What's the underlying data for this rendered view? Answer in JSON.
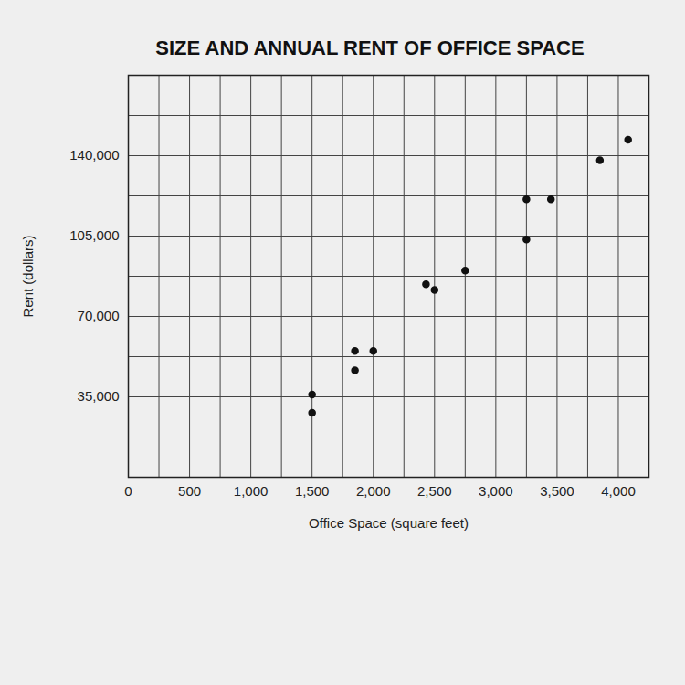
{
  "chart_data": {
    "type": "scatter",
    "title": "SIZE AND ANNUAL RENT OF OFFICE SPACE",
    "x_label": "Office Space (square feet)",
    "y_label": "Rent (dollars)",
    "x": [
      1500,
      1500,
      1850,
      1850,
      2000,
      2430,
      2500,
      2750,
      3250,
      3250,
      3450,
      3850,
      4080
    ],
    "values": [
      36000,
      28000,
      55000,
      46500,
      55000,
      84000,
      81500,
      90000,
      121000,
      103500,
      121000,
      138000,
      147000
    ],
    "color": "#111111",
    "marker": "circle",
    "xlim": [
      0,
      4250
    ],
    "ylim": [
      0,
      175000
    ],
    "xticks": [
      0,
      500,
      {
        "value": 1000,
        "label": "1,000"
      },
      {
        "value": 1500,
        "label": "1,500"
      },
      {
        "value": 2000,
        "label": "2,000"
      },
      {
        "value": 2500,
        "label": "2,500"
      },
      {
        "value": 3000,
        "label": "3,000"
      },
      {
        "value": 3500,
        "label": "3,500"
      },
      {
        "value": 4000,
        "label": "4,000"
      }
    ],
    "yticks": [
      {
        "value": 35000,
        "label": "35,000"
      },
      {
        "value": 70000,
        "label": "70,000"
      },
      {
        "value": 105000,
        "label": "105,000"
      },
      {
        "value": 140000,
        "label": "140,000"
      }
    ],
    "grid": true
  }
}
